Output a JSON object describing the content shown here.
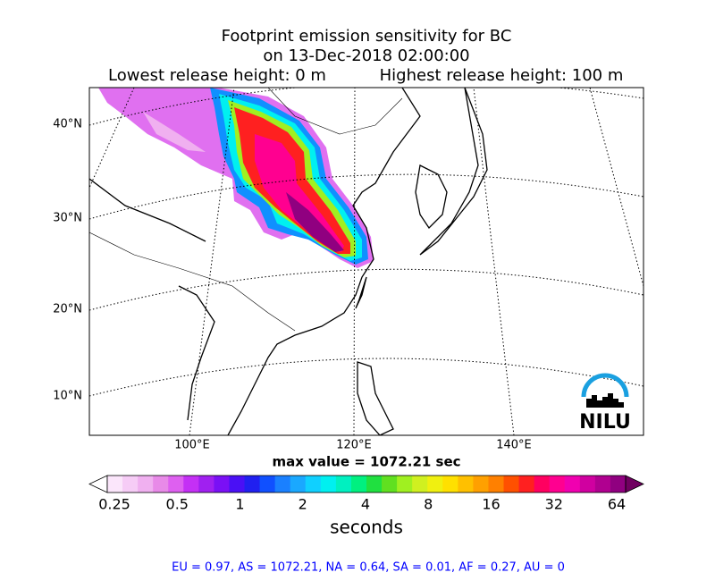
{
  "header": {
    "title": "Footprint emission sensitivity for BC",
    "date": "on 13-Dec-2018 02:00:00",
    "lowest": "Lowest release height: 0 m",
    "highest": "Highest release height: 100 m"
  },
  "map": {
    "lat_labels": [
      "40°N",
      "30°N",
      "20°N",
      "10°N"
    ],
    "lon_labels": [
      "100°E",
      "120°E",
      "140°E"
    ],
    "logo": "NILU"
  },
  "max_value": "max value = 1072.21 sec",
  "colorbar": {
    "tick_labels": [
      "0.25",
      "0.5",
      "1",
      "2",
      "4",
      "8",
      "16",
      "32",
      "64"
    ],
    "label": "seconds",
    "colors": [
      "#ffffff",
      "#fbe6fb",
      "#f6ccf6",
      "#f0b0f0",
      "#e88ae8",
      "#de60f0",
      "#c430f5",
      "#a020f0",
      "#7a10f5",
      "#4a10f5",
      "#2020f0",
      "#1050ff",
      "#1a80ff",
      "#1aa8ff",
      "#10d0ff",
      "#00f0f0",
      "#00f0c0",
      "#00f080",
      "#20e040",
      "#60e020",
      "#a0f020",
      "#d0f020",
      "#f0f010",
      "#ffe000",
      "#ffc000",
      "#ffa000",
      "#ff8000",
      "#ff5000",
      "#ff2020",
      "#ff0060",
      "#ff0090",
      "#f000b0",
      "#d000a0",
      "#b00090",
      "#900080",
      "#700060"
    ]
  },
  "footer": "EU = 0.97,  AS = 1072.21,  NA = 0.64,  SA = 0.01,  AF = 0.27,  AU = 0"
}
